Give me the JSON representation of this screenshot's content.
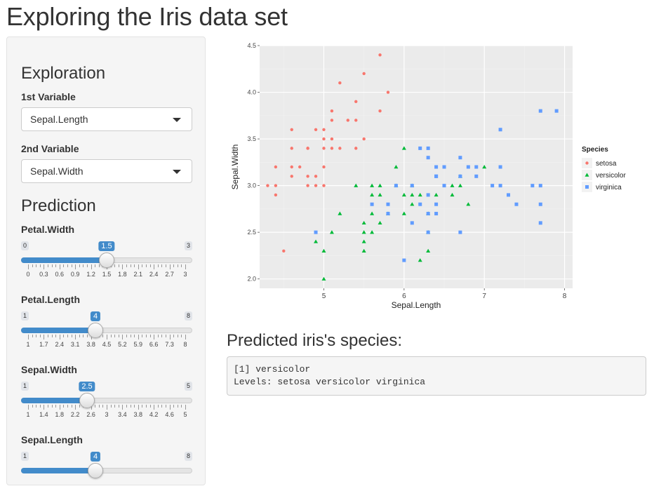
{
  "page": {
    "title": "Exploring the Iris data set"
  },
  "exploration": {
    "heading": "Exploration",
    "var1": {
      "label": "1st Variable",
      "selected": "Sepal.Length"
    },
    "var2": {
      "label": "2nd Variable",
      "selected": "Sepal.Width"
    }
  },
  "prediction": {
    "heading": "Prediction",
    "sliders": [
      {
        "name": "petal-width",
        "label": "Petal.Width",
        "min": 0,
        "max": 3,
        "value": 1.5,
        "ticks": [
          "0",
          "0.3",
          "0.6",
          "0.9",
          "1.2",
          "1.5",
          "1.8",
          "2.1",
          "2.4",
          "2.7",
          "3"
        ]
      },
      {
        "name": "petal-length",
        "label": "Petal.Length",
        "min": 1,
        "max": 8,
        "value": 4,
        "ticks": [
          "1",
          "1.7",
          "2.4",
          "3.1",
          "3.8",
          "4.5",
          "5.2",
          "5.9",
          "6.6",
          "7.3",
          "8"
        ]
      },
      {
        "name": "sepal-width",
        "label": "Sepal.Width",
        "min": 1,
        "max": 5,
        "value": 2.5,
        "ticks": [
          "1",
          "1.4",
          "1.8",
          "2.2",
          "2.6",
          "3",
          "3.4",
          "3.8",
          "4.2",
          "4.6",
          "5"
        ]
      },
      {
        "name": "sepal-length",
        "label": "Sepal.Length",
        "min": 1,
        "max": 8,
        "value": 4,
        "ticks": []
      }
    ]
  },
  "result": {
    "heading": "Predicted iris's species:",
    "line1": "[1] versicolor",
    "line2": "Levels: setosa versicolor virginica"
  },
  "chart_data": {
    "type": "scatter",
    "xlabel": "Sepal.Length",
    "ylabel": "Sepal.Width",
    "xlim": [
      4.2,
      8.1
    ],
    "ylim": [
      1.9,
      4.5
    ],
    "xticks": [
      5,
      6,
      7,
      8
    ],
    "yticks": [
      2.0,
      2.5,
      3.0,
      3.5,
      4.0,
      4.5
    ],
    "grid": true,
    "background": "#ebebeb",
    "legend": {
      "title": "Species",
      "placement": "right"
    },
    "series": [
      {
        "name": "setosa",
        "color": "#f8766d",
        "marker": "circle",
        "points": [
          [
            5.7,
            4.4
          ],
          [
            5.5,
            4.2
          ],
          [
            5.8,
            4.0
          ],
          [
            5.2,
            4.1
          ],
          [
            5.1,
            3.8
          ],
          [
            5.7,
            3.8
          ],
          [
            5.4,
            3.9
          ],
          [
            5.1,
            3.7
          ],
          [
            5.3,
            3.7
          ],
          [
            5.4,
            3.7
          ],
          [
            4.6,
            3.6
          ],
          [
            5.0,
            3.6
          ],
          [
            4.9,
            3.6
          ],
          [
            5.0,
            3.5
          ],
          [
            5.1,
            3.5
          ],
          [
            5.5,
            3.5
          ],
          [
            4.6,
            3.4
          ],
          [
            4.8,
            3.4
          ],
          [
            5.0,
            3.4
          ],
          [
            5.1,
            3.4
          ],
          [
            5.2,
            3.4
          ],
          [
            5.4,
            3.4
          ],
          [
            4.8,
            3.4
          ],
          [
            4.4,
            3.2
          ],
          [
            4.6,
            3.2
          ],
          [
            4.7,
            3.2
          ],
          [
            5.0,
            3.2
          ],
          [
            4.9,
            3.1
          ],
          [
            4.8,
            3.1
          ],
          [
            4.6,
            3.1
          ],
          [
            4.9,
            3.0
          ],
          [
            4.3,
            3.0
          ],
          [
            4.4,
            3.0
          ],
          [
            4.8,
            3.0
          ],
          [
            5.0,
            3.0
          ],
          [
            4.4,
            2.9
          ],
          [
            4.5,
            2.3
          ]
        ]
      },
      {
        "name": "versicolor",
        "color": "#00ba38",
        "marker": "triangle",
        "points": [
          [
            6.0,
            3.4
          ],
          [
            5.9,
            3.2
          ],
          [
            6.7,
            3.1
          ],
          [
            7.0,
            3.2
          ],
          [
            6.8,
            2.8
          ],
          [
            5.6,
            3.0
          ],
          [
            5.7,
            3.0
          ],
          [
            5.9,
            3.0
          ],
          [
            6.1,
            3.0
          ],
          [
            6.6,
            3.0
          ],
          [
            6.7,
            3.0
          ],
          [
            5.4,
            3.0
          ],
          [
            5.6,
            2.9
          ],
          [
            5.7,
            2.9
          ],
          [
            6.0,
            2.9
          ],
          [
            6.1,
            2.9
          ],
          [
            6.2,
            2.9
          ],
          [
            6.4,
            2.9
          ],
          [
            6.6,
            2.9
          ],
          [
            5.5,
            2.6
          ],
          [
            5.6,
            2.7
          ],
          [
            5.8,
            2.7
          ],
          [
            6.0,
            2.7
          ],
          [
            6.1,
            2.8
          ],
          [
            6.3,
            2.7
          ],
          [
            5.2,
            2.7
          ],
          [
            5.7,
            2.6
          ],
          [
            5.5,
            2.5
          ],
          [
            5.6,
            2.5
          ],
          [
            6.3,
            2.5
          ],
          [
            5.1,
            2.5
          ],
          [
            5.5,
            2.4
          ],
          [
            4.9,
            2.4
          ],
          [
            5.0,
            2.3
          ],
          [
            5.5,
            2.3
          ],
          [
            6.3,
            2.3
          ],
          [
            6.2,
            2.2
          ],
          [
            5.0,
            2.0
          ]
        ]
      },
      {
        "name": "virginica",
        "color": "#619cff",
        "marker": "square",
        "points": [
          [
            7.7,
            3.8
          ],
          [
            7.9,
            3.8
          ],
          [
            7.2,
            3.6
          ],
          [
            6.2,
            3.4
          ],
          [
            6.3,
            3.4
          ],
          [
            6.4,
            3.2
          ],
          [
            6.5,
            3.2
          ],
          [
            6.8,
            3.2
          ],
          [
            6.9,
            3.2
          ],
          [
            7.2,
            3.2
          ],
          [
            6.7,
            3.3
          ],
          [
            6.3,
            3.3
          ],
          [
            6.4,
            3.1
          ],
          [
            6.7,
            3.1
          ],
          [
            6.9,
            3.1
          ],
          [
            6.4,
            3.1
          ],
          [
            5.9,
            3.0
          ],
          [
            6.5,
            3.0
          ],
          [
            7.1,
            3.0
          ],
          [
            7.2,
            3.0
          ],
          [
            7.7,
            3.0
          ],
          [
            7.6,
            3.0
          ],
          [
            6.3,
            2.9
          ],
          [
            7.3,
            2.9
          ],
          [
            6.1,
            3.0
          ],
          [
            5.8,
            2.8
          ],
          [
            6.2,
            2.8
          ],
          [
            6.4,
            2.8
          ],
          [
            7.4,
            2.8
          ],
          [
            7.7,
            2.8
          ],
          [
            5.8,
            2.7
          ],
          [
            6.3,
            2.7
          ],
          [
            5.6,
            2.8
          ],
          [
            6.4,
            2.7
          ],
          [
            6.1,
            2.6
          ],
          [
            7.7,
            2.6
          ],
          [
            4.9,
            2.5
          ],
          [
            6.7,
            2.5
          ],
          [
            6.3,
            2.5
          ],
          [
            6.0,
            2.2
          ]
        ]
      }
    ]
  }
}
